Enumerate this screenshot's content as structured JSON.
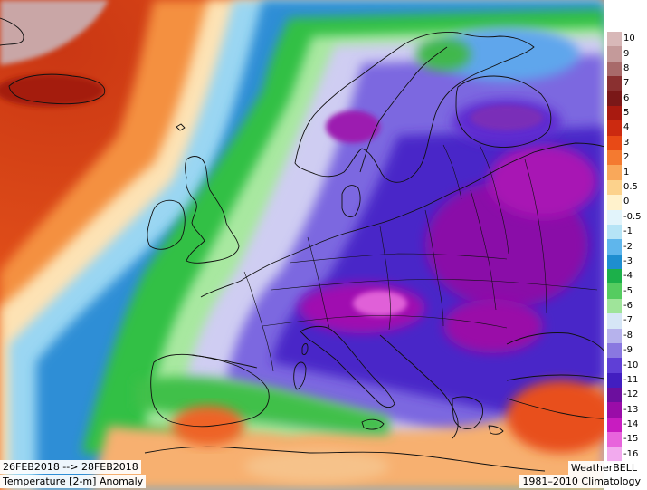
{
  "date_range": "26FEB2018 --> 28FEB2018",
  "variable": "Temperature [2-m] Anomaly",
  "provider": "WeatherBELL",
  "baseline": "1981–2010 Climatology",
  "colorbar": {
    "levels": [
      {
        "label": "10",
        "color": "#d8b8b8"
      },
      {
        "label": "9",
        "color": "#c49a9a"
      },
      {
        "label": "8",
        "color": "#a86a6a"
      },
      {
        "label": "7",
        "color": "#8a3030"
      },
      {
        "label": "6",
        "color": "#7a1818"
      },
      {
        "label": "5",
        "color": "#a81a10"
      },
      {
        "label": "4",
        "color": "#cc2a10"
      },
      {
        "label": "3",
        "color": "#e84a16"
      },
      {
        "label": "2",
        "color": "#f47a30"
      },
      {
        "label": "1",
        "color": "#f9a85a"
      },
      {
        "label": "0.5",
        "color": "#fcd28c"
      },
      {
        "label": "0",
        "color": "#fff2cc"
      },
      {
        "label": "-0.5",
        "color": "#e2f4fb"
      },
      {
        "label": "-1",
        "color": "#b6e4f6"
      },
      {
        "label": "-2",
        "color": "#5fb6ec"
      },
      {
        "label": "-3",
        "color": "#1e8ed0"
      },
      {
        "label": "-4",
        "color": "#1cb04a"
      },
      {
        "label": "-5",
        "color": "#55cc60"
      },
      {
        "label": "-6",
        "color": "#9fe49a"
      },
      {
        "label": "-7",
        "color": "#d6e6f6"
      },
      {
        "label": "-8",
        "color": "#b6b2ec"
      },
      {
        "label": "-9",
        "color": "#8a78e0"
      },
      {
        "label": "-10",
        "color": "#5f3fd6"
      },
      {
        "label": "-11",
        "color": "#421ec0"
      },
      {
        "label": "-12",
        "color": "#6c0f9e"
      },
      {
        "label": "-13",
        "color": "#9a0ca8"
      },
      {
        "label": "-14",
        "color": "#c81cc0"
      },
      {
        "label": "-15",
        "color": "#e864dc"
      },
      {
        "label": "-16",
        "color": "#f2aaee"
      }
    ]
  }
}
